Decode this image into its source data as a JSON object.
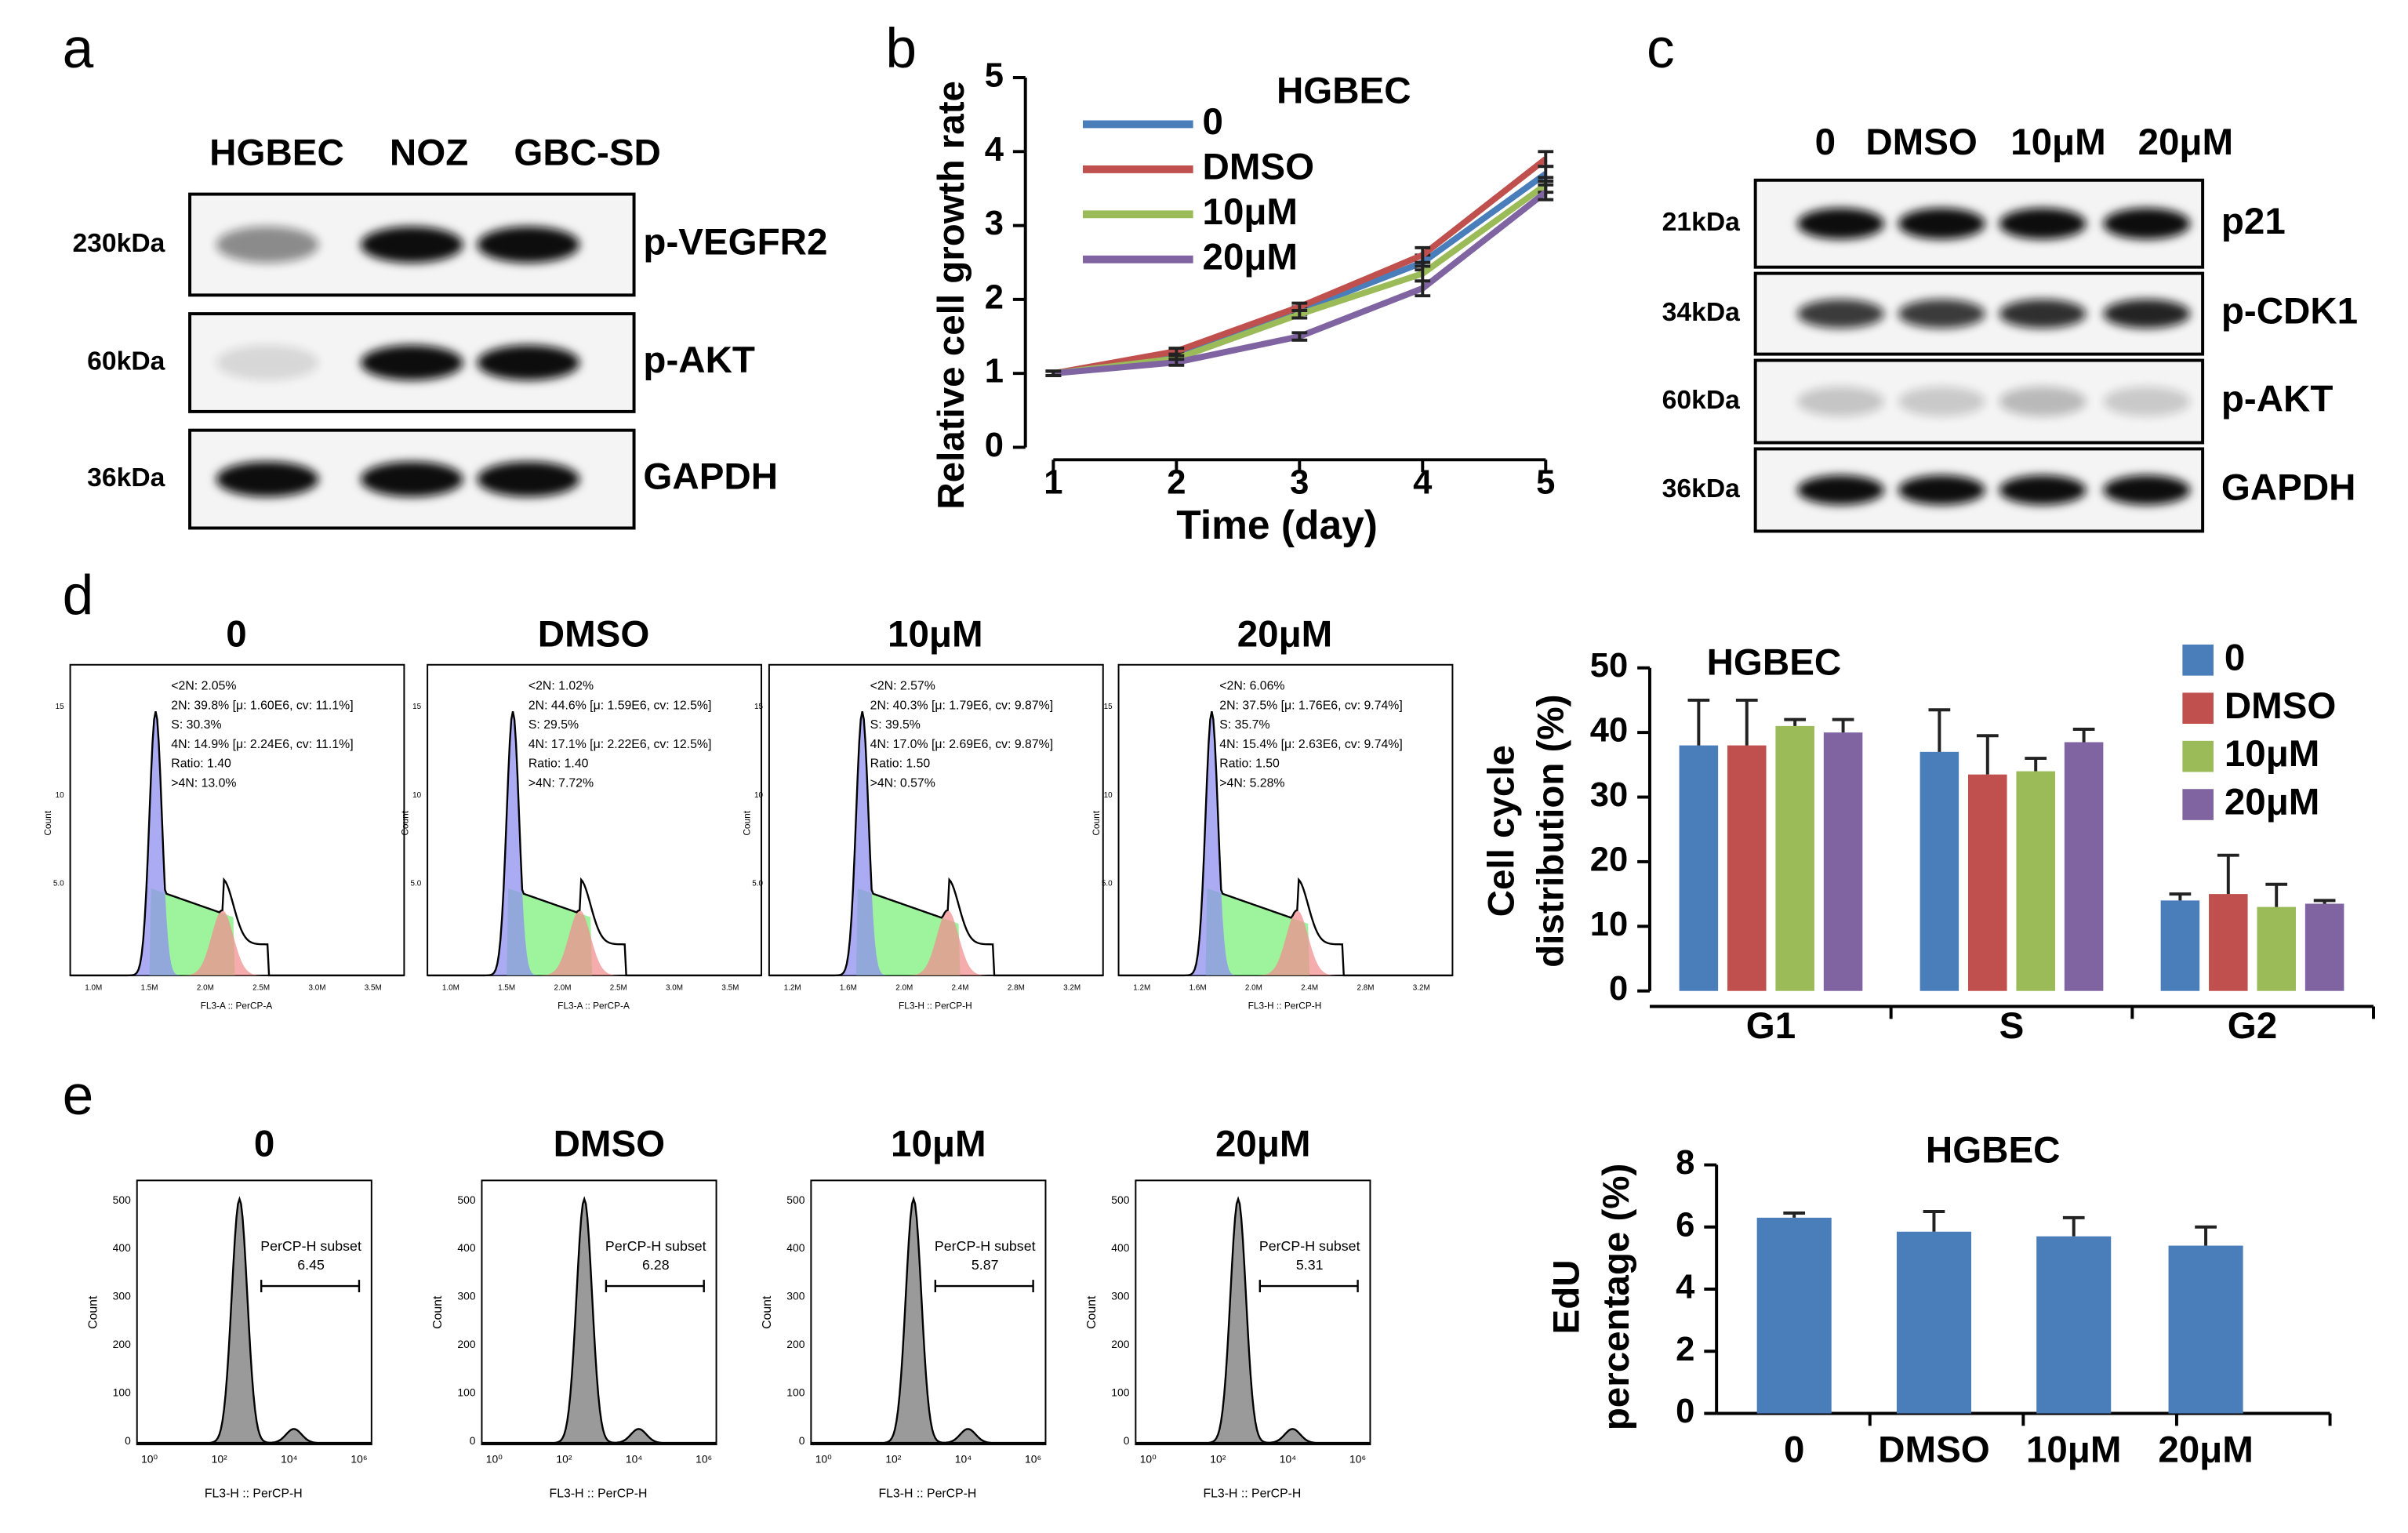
{
  "panel_labels": [
    "a",
    "b",
    "c",
    "d",
    "e"
  ],
  "blot_a": {
    "lanes": [
      "HGBEC",
      "NOZ",
      "GBC-SD"
    ],
    "rows": [
      {
        "marker": "230kDa",
        "protein": "p-VEGFR2"
      },
      {
        "marker": "60kDa",
        "protein": "p-AKT"
      },
      {
        "marker": "36kDa",
        "protein": "GAPDH"
      }
    ]
  },
  "blot_c": {
    "lanes": [
      "0",
      "DMSO",
      "10μM",
      "20μM"
    ],
    "rows": [
      {
        "marker": "21kDa",
        "protein": "p21"
      },
      {
        "marker": "34kDa",
        "protein": "p-CDK1"
      },
      {
        "marker": "60kDa",
        "protein": "p-AKT"
      },
      {
        "marker": "36kDa",
        "protein": "GAPDH"
      }
    ]
  },
  "flow_d": {
    "ylabel": "Count",
    "yticks": [
      "15",
      "10",
      "5.0"
    ],
    "plots": [
      {
        "title": "0",
        "xlabel": "FL3-A :: PerCP-A",
        "xticks": [
          "1.0M",
          "1.5M",
          "2.0M",
          "2.5M",
          "3.0M",
          "3.5M"
        ],
        "stats": [
          "<2N: 2.05%",
          "2N: 39.8%   [μ: 1.60E6, cv: 11.1%]",
          "S: 30.3%",
          "4N: 14.9%   [μ: 2.24E6, cv: 11.1%]",
          "Ratio: 1.40",
          ">4N: 13.0%"
        ]
      },
      {
        "title": "DMSO",
        "xlabel": "FL3-A :: PerCP-A",
        "xticks": [
          "1.0M",
          "1.5M",
          "2.0M",
          "2.5M",
          "3.0M",
          "3.5M"
        ],
        "stats": [
          "<2N: 1.02%",
          "2N: 44.6%   [μ: 1.59E6, cv: 12.5%]",
          "S: 29.5%",
          "4N: 17.1%   [μ: 2.22E6, cv: 12.5%]",
          "Ratio: 1.40",
          ">4N: 7.72%"
        ]
      },
      {
        "title": "10μM",
        "xlabel": "FL3-H :: PerCP-H",
        "xticks": [
          "1.2M",
          "1.6M",
          "2.0M",
          "2.4M",
          "2.8M",
          "3.2M"
        ],
        "stats": [
          "<2N: 2.57%",
          "2N: 40.3%   [μ: 1.79E6, cv: 9.87%]",
          "S: 39.5%",
          "4N: 17.0%   [μ: 2.69E6, cv: 9.87%]",
          "Ratio: 1.50",
          ">4N: 0.57%"
        ]
      },
      {
        "title": "20μM",
        "xlabel": "FL3-H :: PerCP-H",
        "xticks": [
          "1.2M",
          "1.6M",
          "2.0M",
          "2.4M",
          "2.8M",
          "3.2M"
        ],
        "stats": [
          "<2N: 6.06%",
          "2N: 37.5%   [μ: 1.76E6, cv: 9.74%]",
          "S: 35.7%",
          "4N: 15.4%   [μ: 2.63E6, cv: 9.74%]",
          "Ratio: 1.50",
          ">4N: 5.28%"
        ]
      }
    ]
  },
  "flow_e": {
    "xlabel": "FL3-H :: PerCP-H",
    "ylabel": "Count",
    "xticks": [
      "10⁰",
      "10²",
      "10⁴",
      "10⁶"
    ],
    "yticks": [
      "0",
      "100",
      "200",
      "300",
      "400",
      "500"
    ],
    "gate": "PerCP-H subset",
    "plots": [
      {
        "title": "0",
        "value": 6.45
      },
      {
        "title": "DMSO",
        "value": 6.28
      },
      {
        "title": "10μM",
        "value": 5.87
      },
      {
        "title": "20μM",
        "value": 5.31
      }
    ]
  },
  "chart_data": [
    {
      "type": "line",
      "title": "HGBEC",
      "xlabel": "Time (day)",
      "ylabel": "Relative cell growth rate",
      "x": [
        1,
        2,
        3,
        4,
        5
      ],
      "xlim": [
        1,
        5
      ],
      "xticks": [
        1,
        2,
        3,
        4,
        5
      ],
      "ylim": [
        0,
        5
      ],
      "yticks": [
        0,
        1,
        2,
        3,
        4,
        5
      ],
      "series": [
        {
          "name": "0",
          "color": "#4a7ebb",
          "values": [
            1,
            1.25,
            1.85,
            2.5,
            3.7
          ],
          "errors": [
            0.03,
            0.04,
            0.05,
            0.1,
            0.1
          ]
        },
        {
          "name": "DMSO",
          "color": "#c0504d",
          "values": [
            1,
            1.3,
            1.9,
            2.6,
            3.9
          ],
          "errors": [
            0.03,
            0.04,
            0.05,
            0.1,
            0.1
          ]
        },
        {
          "name": "10μM",
          "color": "#9bbb59",
          "values": [
            1,
            1.2,
            1.8,
            2.35,
            3.55
          ],
          "errors": [
            0.03,
            0.04,
            0.05,
            0.1,
            0.1
          ]
        },
        {
          "name": "20μM",
          "color": "#8064a2",
          "values": [
            1,
            1.15,
            1.5,
            2.15,
            3.45
          ],
          "errors": [
            0.03,
            0.04,
            0.05,
            0.1,
            0.1
          ]
        }
      ]
    },
    {
      "type": "bar",
      "title": "HGBEC",
      "ylabel": [
        "Cell cycle",
        "distribution (%)"
      ],
      "categories": [
        "G1",
        "S",
        "G2"
      ],
      "ylim": [
        0,
        50
      ],
      "yticks": [
        0,
        10,
        20,
        30,
        40,
        50
      ],
      "series": [
        {
          "name": "0",
          "color": "#4a7ebb",
          "values": [
            38,
            37,
            14
          ],
          "errors": [
            7,
            6.5,
            1
          ]
        },
        {
          "name": "DMSO",
          "color": "#c0504d",
          "values": [
            38,
            33.5,
            15
          ],
          "errors": [
            7,
            6,
            6
          ]
        },
        {
          "name": "10μM",
          "color": "#9bbb59",
          "values": [
            41,
            34,
            13
          ],
          "errors": [
            1,
            2,
            3.5
          ]
        },
        {
          "name": "20μM",
          "color": "#8064a2",
          "values": [
            40,
            38.5,
            13.5
          ],
          "errors": [
            2,
            2,
            0.5
          ]
        }
      ]
    },
    {
      "type": "bar",
      "title": "HGBEC",
      "ylabel": [
        "EdU",
        "percentage (%)"
      ],
      "categories": [
        "0",
        "DMSO",
        "10μM",
        "20μM"
      ],
      "ylim": [
        0,
        8
      ],
      "yticks": [
        0,
        2,
        4,
        6,
        8
      ],
      "series": [
        {
          "color": "#4a7ebb",
          "values": [
            6.3,
            5.85,
            5.7,
            5.4
          ],
          "errors": [
            0.15,
            0.65,
            0.6,
            0.6
          ]
        }
      ]
    }
  ]
}
